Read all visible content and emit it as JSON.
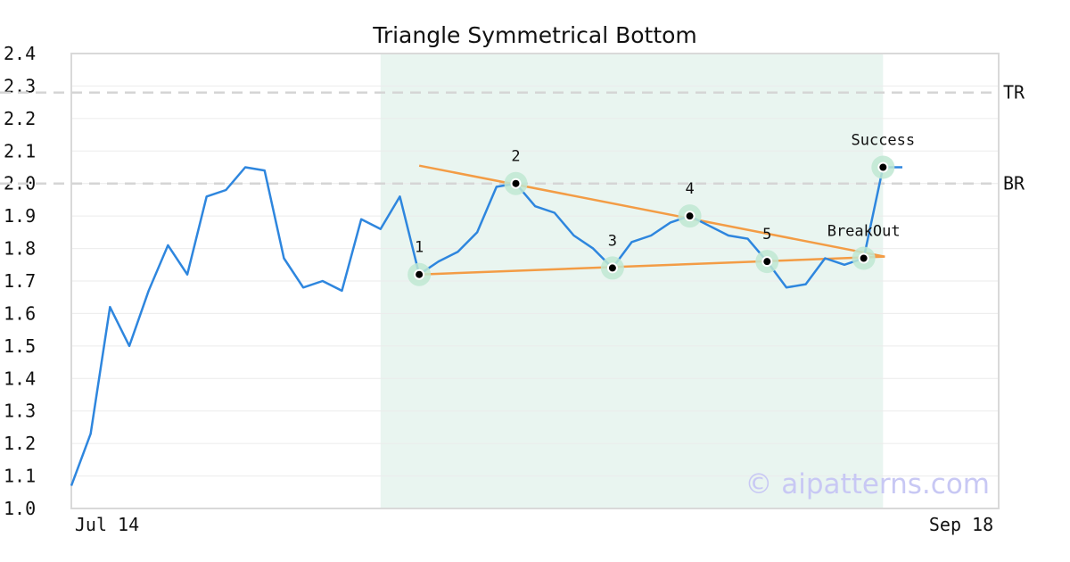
{
  "chart_data": {
    "type": "line",
    "title": "Triangle Symmetrical Bottom",
    "xlabel": "",
    "ylabel": "",
    "ylim": [
      1.0,
      2.4
    ],
    "y_ticks": [
      "1.0",
      "1.1",
      "1.2",
      "1.3",
      "1.4",
      "1.5",
      "1.6",
      "1.7",
      "1.8",
      "1.9",
      "2.0",
      "2.1",
      "2.2",
      "2.3",
      "2.4"
    ],
    "x_tick_labels": [
      "Jul 14",
      "Sep 18"
    ],
    "grid": true,
    "colors": {
      "price": "#2e86de",
      "trend": "#f39c45",
      "pattern_region": "#e9f5f0",
      "marker_halo": "#bfe8d2",
      "ref_line": "#d5d5d5"
    },
    "series": [
      {
        "values": [
          1.07,
          1.23,
          1.62,
          1.5,
          1.67,
          1.81,
          1.72,
          1.96,
          1.98,
          2.05,
          2.04,
          1.77,
          1.68,
          1.7,
          1.67,
          1.89,
          1.86,
          1.96,
          1.72,
          1.76,
          1.79,
          1.85,
          1.99,
          2.0,
          1.93,
          1.91,
          1.84,
          1.8,
          1.74,
          1.82,
          1.84,
          1.88,
          1.9,
          1.87,
          1.84,
          1.83,
          1.76,
          1.68,
          1.69,
          1.77,
          1.75,
          1.77,
          2.05,
          2.05
        ]
      }
    ],
    "pattern_region": {
      "start_index": 16,
      "end_index": 42
    },
    "trend_lines": [
      {
        "from": {
          "x": 18,
          "y": 2.055
        },
        "to": {
          "x": 42,
          "y": 1.775
        }
      },
      {
        "from": {
          "x": 18,
          "y": 1.72
        },
        "to": {
          "x": 42,
          "y": 1.775
        }
      }
    ],
    "reference_lines": [
      {
        "label": "TR",
        "y": 2.28
      },
      {
        "label": "BR",
        "y": 2.0
      }
    ],
    "points": [
      {
        "label": "1",
        "x": 18,
        "y": 1.72,
        "label_pos": "above"
      },
      {
        "label": "2",
        "x": 23,
        "y": 2.0,
        "label_pos": "above"
      },
      {
        "label": "3",
        "x": 28,
        "y": 1.74,
        "label_pos": "above"
      },
      {
        "label": "4",
        "x": 32,
        "y": 1.9,
        "label_pos": "above"
      },
      {
        "label": "5",
        "x": 36,
        "y": 1.76,
        "label_pos": "above"
      },
      {
        "label": "BreakOut",
        "x": 41,
        "y": 1.77,
        "label_pos": "above"
      },
      {
        "label": "Success",
        "x": 42,
        "y": 2.05,
        "label_pos": "above"
      }
    ],
    "watermark": "© aipatterns.com"
  }
}
